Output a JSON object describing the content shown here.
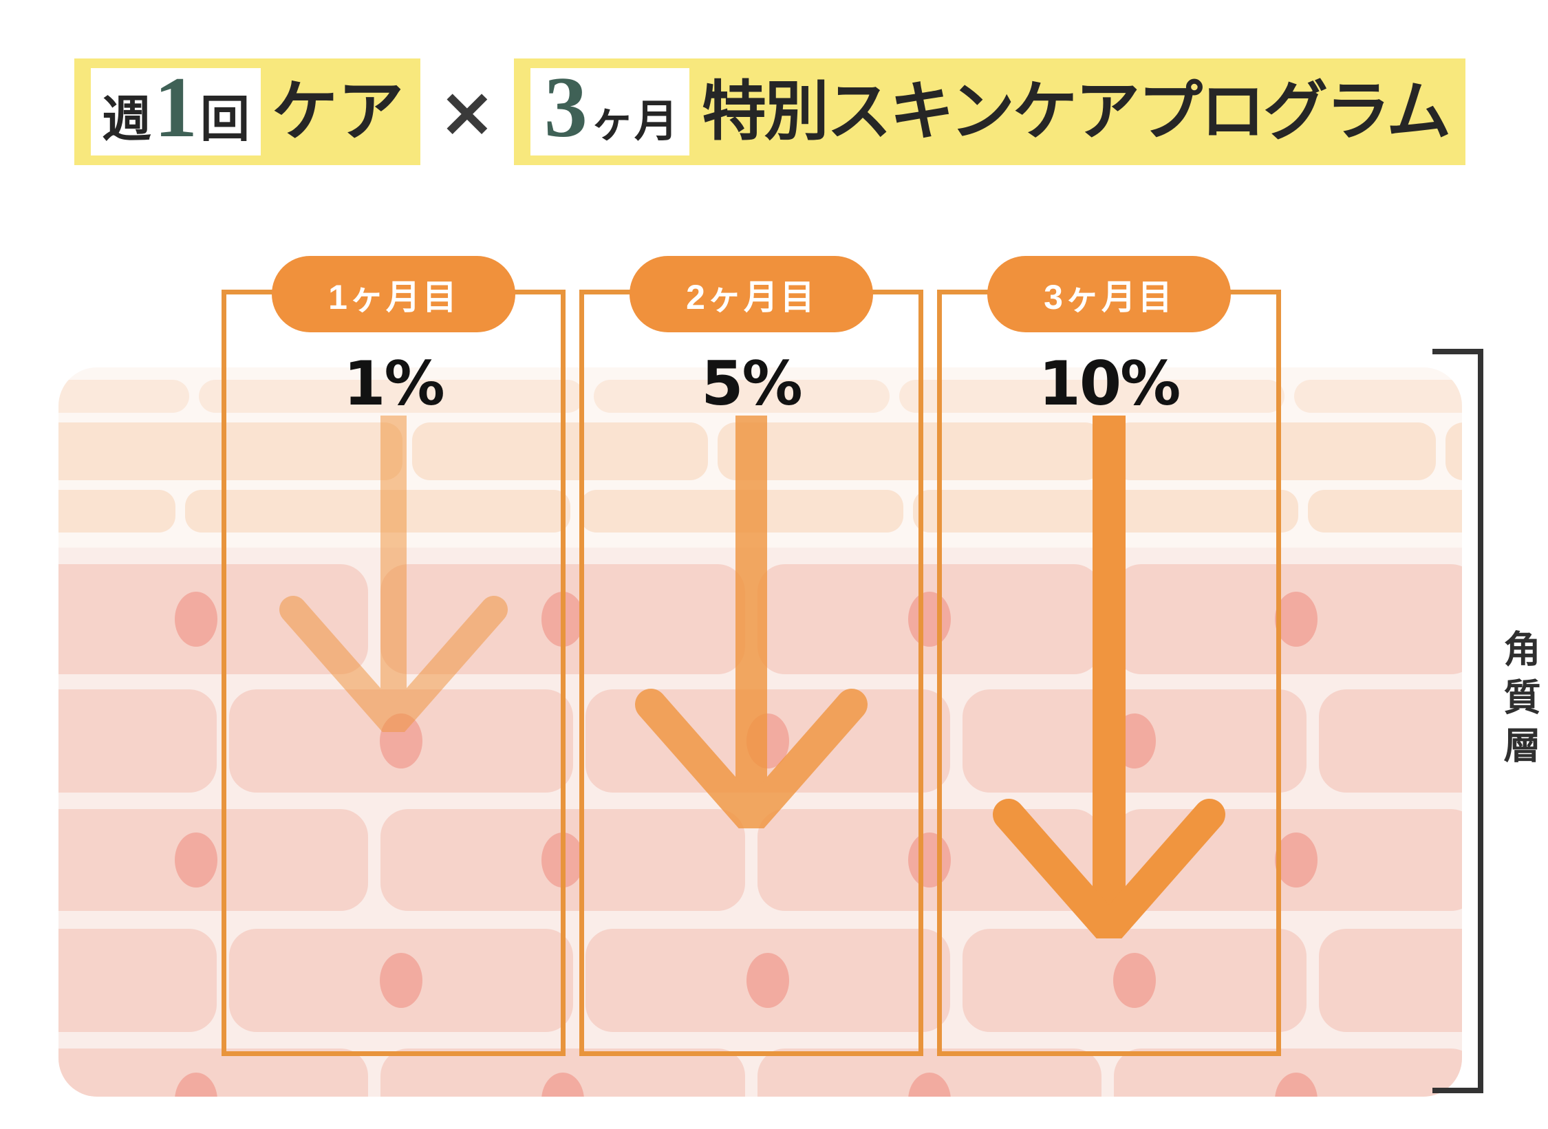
{
  "title": {
    "week_prefix": "週",
    "week_number": "1",
    "week_suffix": "回",
    "week_care": "ケア",
    "separator": "×",
    "duration_number": "3",
    "duration_unit": "ヶ月",
    "program_name": "特別スキンケアプログラム"
  },
  "columns": [
    {
      "month_label": "1ヶ月目",
      "concentration": "1%"
    },
    {
      "month_label": "2ヶ月目",
      "concentration": "5%"
    },
    {
      "month_label": "3ヶ月目",
      "concentration": "10%"
    }
  ],
  "skin_layer_label": "角質層",
  "colors": {
    "yellow_highlight": "#F8E87D",
    "accent_teal": "#3F6156",
    "orange": "#F0953F",
    "orange_border": "#E8943C",
    "pill_orange": "#F0913C",
    "peach_cell": "#FAE3D1",
    "peach_cell_light": "#FBE9DC",
    "pink_zone": "#FAEDE9",
    "pink_cell": "#F6D3CA",
    "cell_nucleus": "#F2ABA0",
    "skin_bg": "#FDF7F3",
    "text_dark": "#262626",
    "bracket": "#333333"
  }
}
